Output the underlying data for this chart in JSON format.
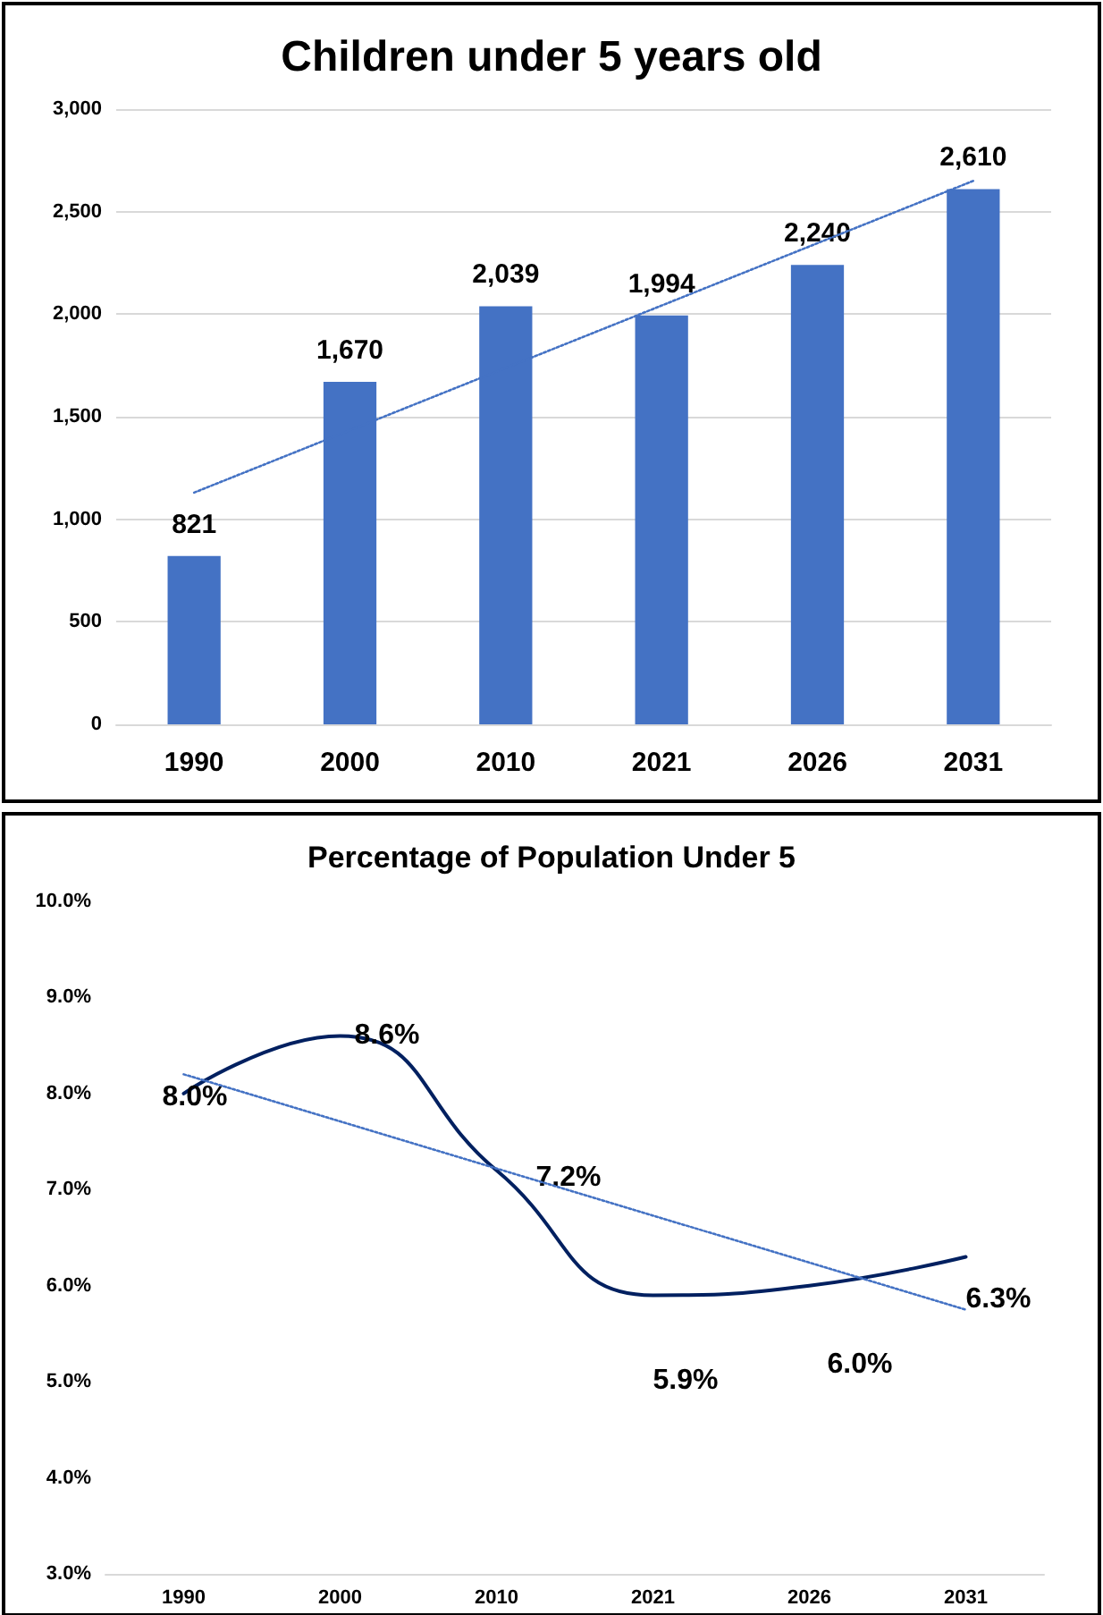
{
  "chart_data": [
    {
      "type": "bar",
      "title": "Children under 5 years old",
      "categories": [
        "1990",
        "2000",
        "2010",
        "2021",
        "2026",
        "2031"
      ],
      "series": [
        {
          "color": "#4472c4",
          "values": [
            821,
            1670,
            2039,
            1994,
            2240,
            2610
          ],
          "value_labels": [
            "821",
            "1,670",
            "2,039",
            "1,994",
            "2,240",
            "2,610"
          ]
        },
        {
          "type": "line",
          "values": [
            1130,
            null,
            null,
            null,
            null,
            2650
          ],
          "color": "#4472c4",
          "line_style": "dotted",
          "marker": "none"
        }
      ],
      "ylim": [
        0,
        3000
      ],
      "yticks": [
        {
          "value": 0,
          "label": "0"
        },
        {
          "value": 500,
          "label": "500"
        },
        {
          "value": 1000,
          "label": "1,000"
        },
        {
          "value": 1500,
          "label": "1,500"
        },
        {
          "value": 2000,
          "label": "2,000"
        },
        {
          "value": 2500,
          "label": "2,500"
        },
        {
          "value": 3000,
          "label": "3,000"
        }
      ],
      "grid": "y"
    },
    {
      "type": "line",
      "title": "Percentage of Population Under 5",
      "categories": [
        "1990",
        "2000",
        "2010",
        "2021",
        "2026",
        "2031"
      ],
      "series": [
        {
          "color": "#002060",
          "values": [
            8.0,
            8.6,
            7.2,
            5.9,
            6.0,
            6.3
          ],
          "value_labels": [
            "8.0%",
            "8.6%",
            "7.2%",
            "5.9%",
            "6.0%",
            "6.3%"
          ],
          "marker": "none",
          "line_style": "solid"
        },
        {
          "type": "line",
          "values": [
            8.2,
            null,
            null,
            null,
            null,
            5.75
          ],
          "color": "#4472c4",
          "line_style": "dotted",
          "marker": "none"
        }
      ],
      "ylim": [
        3,
        10
      ],
      "yticks": [
        {
          "value": 3,
          "label": "3.0%"
        },
        {
          "value": 4,
          "label": "4.0%"
        },
        {
          "value": 5,
          "label": "5.0%"
        },
        {
          "value": 6,
          "label": "6.0%"
        },
        {
          "value": 7,
          "label": "7.0%"
        },
        {
          "value": 8,
          "label": "8.0%"
        },
        {
          "value": 9,
          "label": "9.0%"
        },
        {
          "value": 10,
          "label": "10.0%"
        }
      ],
      "grid": false
    }
  ]
}
